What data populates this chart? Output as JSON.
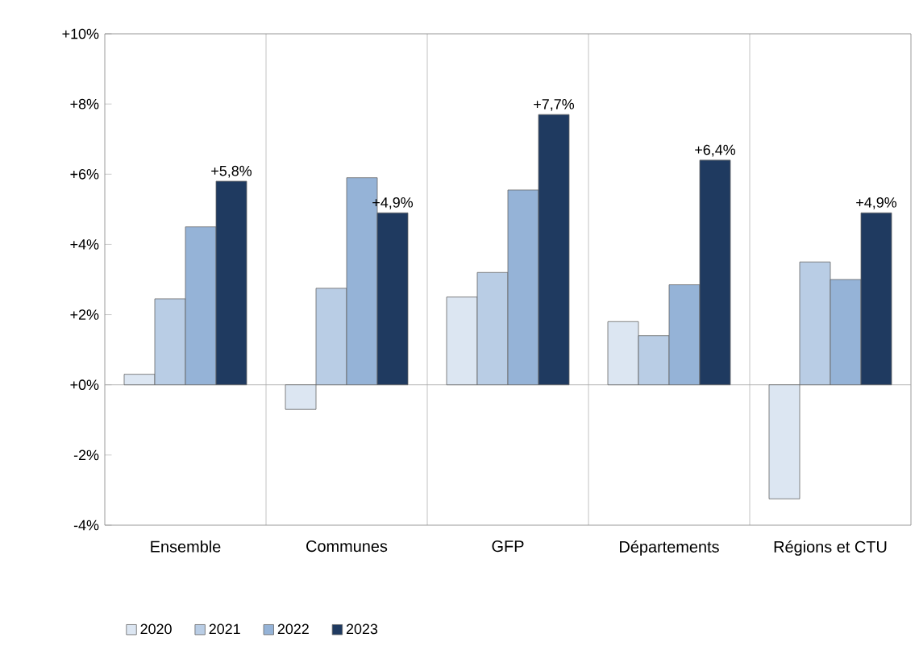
{
  "chart_data": {
    "type": "bar",
    "categories": [
      "Ensemble",
      "Communes",
      "GFP",
      "Départements",
      "Régions et CTU"
    ],
    "series": [
      {
        "name": "2020",
        "color": "#dce6f2",
        "values": [
          0.3,
          -0.7,
          2.5,
          1.8,
          -3.25
        ]
      },
      {
        "name": "2021",
        "color": "#b9cde5",
        "values": [
          2.45,
          2.75,
          3.2,
          1.4,
          3.5
        ]
      },
      {
        "name": "2022",
        "color": "#95b3d7",
        "values": [
          4.5,
          5.9,
          5.55,
          2.85,
          3.0
        ]
      },
      {
        "name": "2023",
        "color": "#1f3a60",
        "values": [
          5.8,
          4.9,
          7.7,
          6.4,
          4.9
        ],
        "value_labels": [
          "+5,8%",
          "+4,9%",
          "+7,7%",
          "+6,4%",
          "+4,9%"
        ]
      }
    ],
    "ylim": [
      -4,
      10
    ],
    "yticks": [
      {
        "value": -4,
        "label": "-4%"
      },
      {
        "value": -2,
        "label": "-2%"
      },
      {
        "value": 0,
        "label": "+0%"
      },
      {
        "value": 2,
        "label": "+2%"
      },
      {
        "value": 4,
        "label": "+4%"
      },
      {
        "value": 6,
        "label": "+6%"
      },
      {
        "value": 8,
        "label": "+8%"
      },
      {
        "value": 10,
        "label": "+10%"
      }
    ],
    "grid": "x",
    "legend": "bottom"
  }
}
